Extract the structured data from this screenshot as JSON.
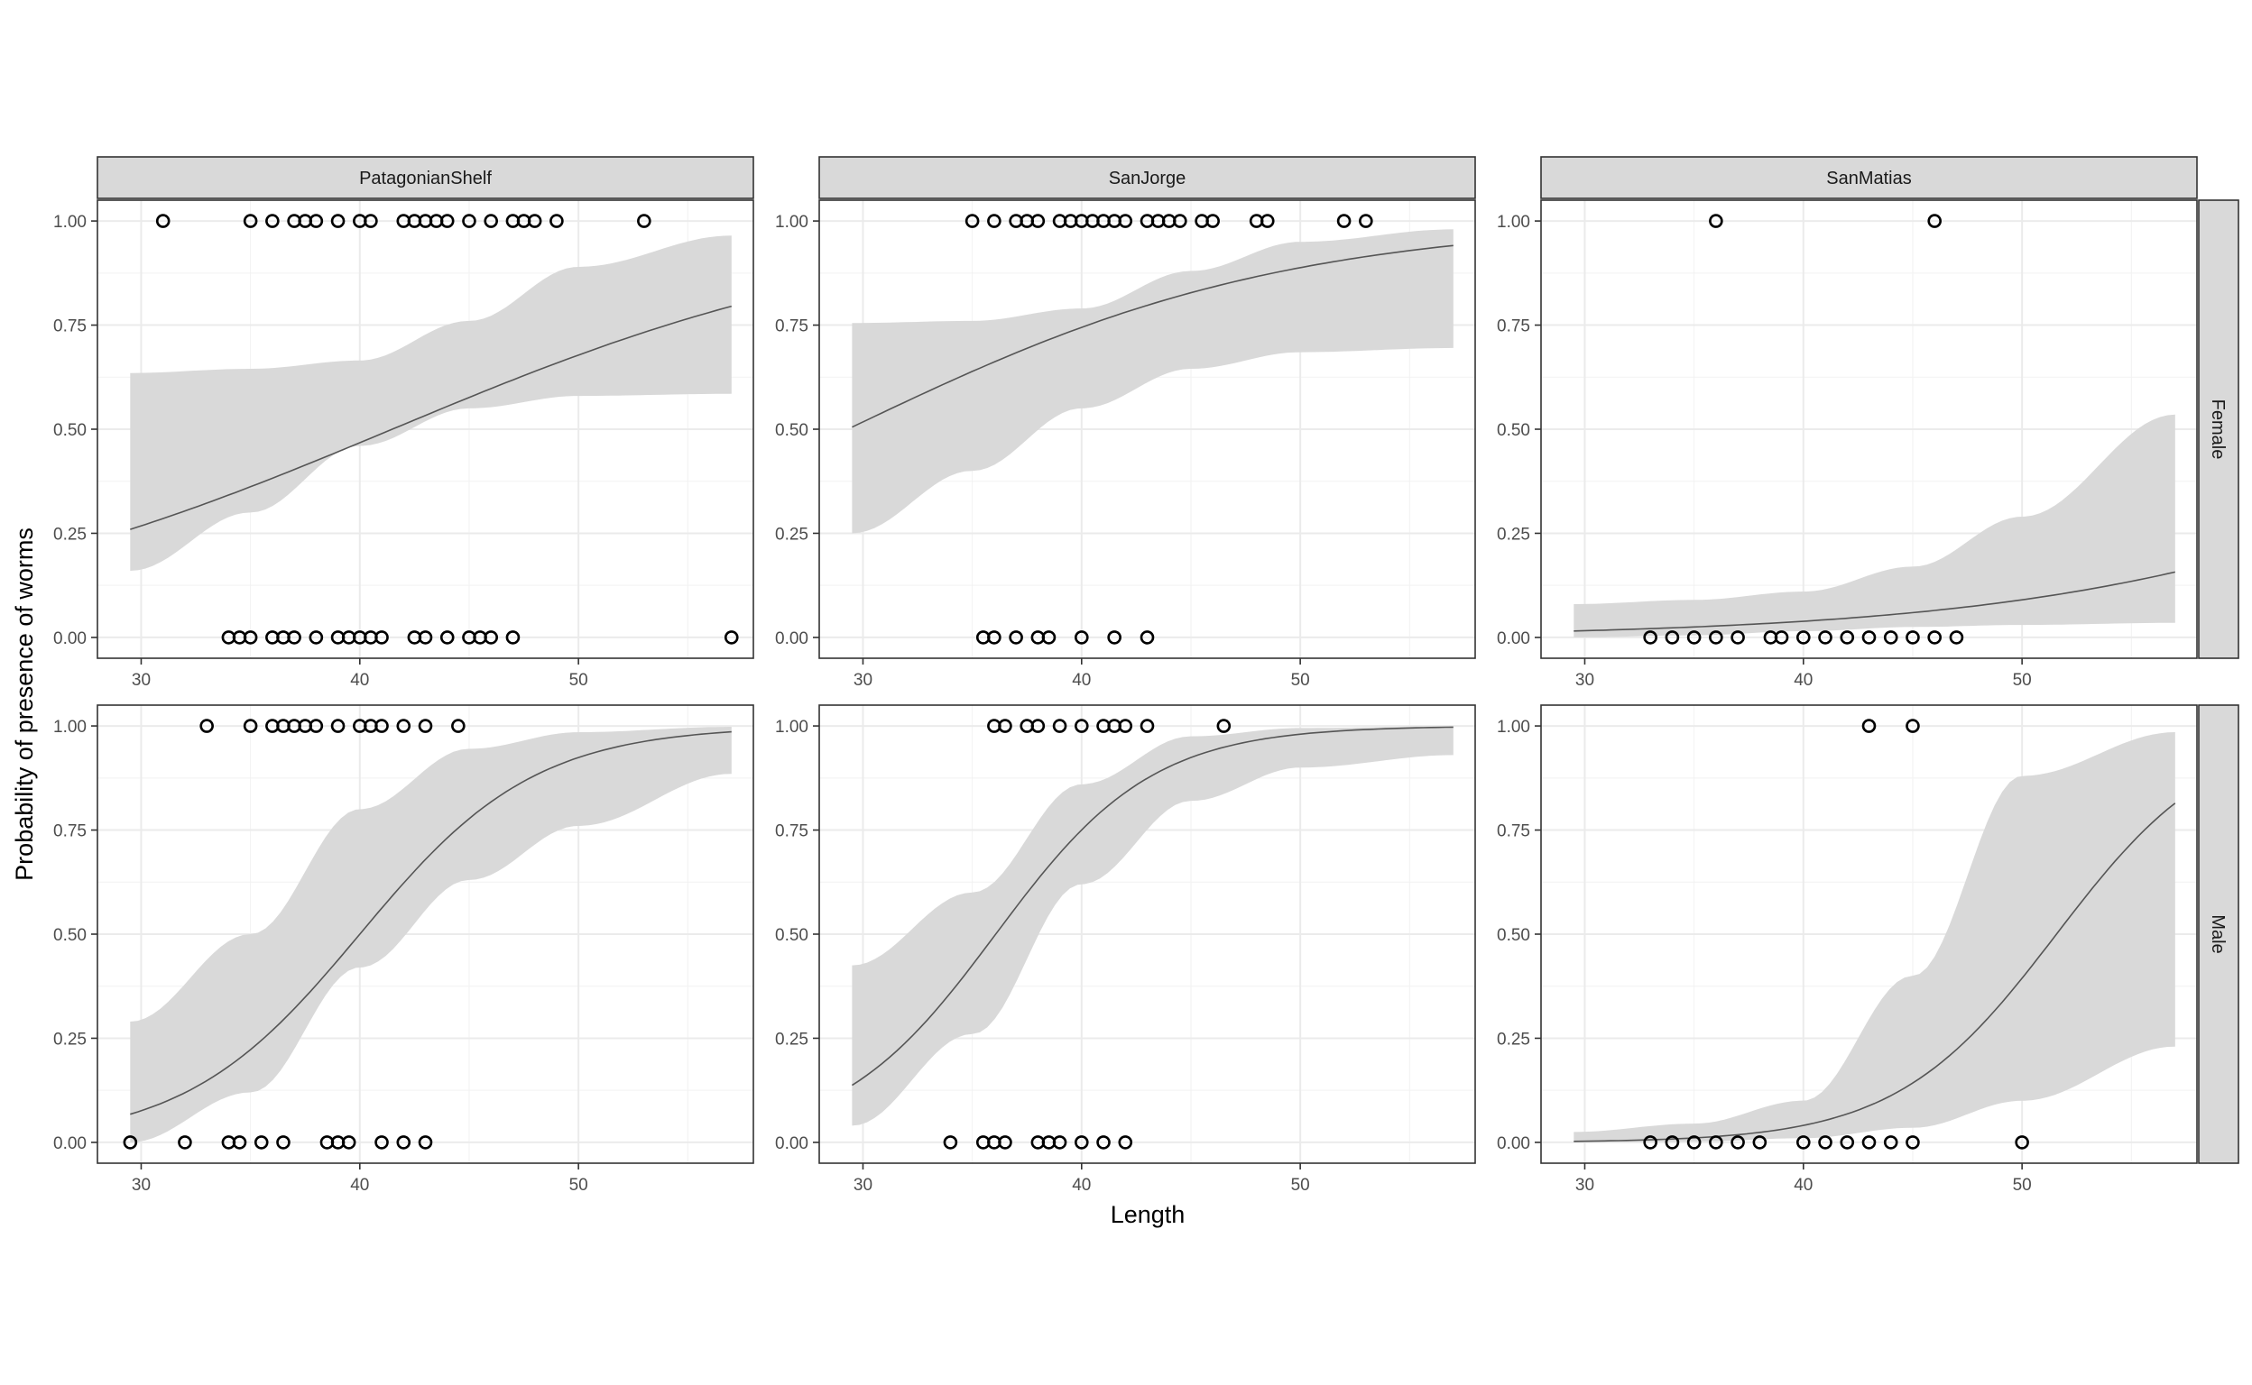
{
  "chart_data": {
    "type": "scatter",
    "title": "",
    "xlabel": "Length",
    "ylabel": "Probability of presence of worms",
    "xlim": [
      28,
      58
    ],
    "ylim": [
      -0.05,
      1.05
    ],
    "x_ticks": [
      30,
      40,
      50
    ],
    "y_ticks": [
      "0.00",
      "0.25",
      "0.50",
      "0.75",
      "1.00"
    ],
    "columns": [
      "PatagonianShelf",
      "SanJorge",
      "SanMatias"
    ],
    "rows": [
      "Female",
      "Male"
    ],
    "grid": true,
    "layers": [
      "confidence ribbon",
      "fitted logistic line",
      "observed points"
    ],
    "x_range_fit": [
      29.5,
      57
    ],
    "panels": [
      {
        "area": "PatagonianShelf",
        "sex": "Female",
        "fit": {
          "intercept": -3.63,
          "slope": 0.0875
        },
        "band": {
          "x": [
            29.5,
            35,
            40,
            45,
            50,
            57
          ],
          "lower": [
            0.16,
            0.3,
            0.46,
            0.55,
            0.58,
            0.585
          ],
          "upper": [
            0.635,
            0.645,
            0.665,
            0.76,
            0.89,
            0.965
          ]
        },
        "points_present": [
          31,
          35,
          36,
          37,
          37.5,
          38,
          39,
          40,
          40.5,
          42,
          42.5,
          43,
          43.5,
          44,
          45,
          46,
          47,
          47.5,
          48,
          49,
          53
        ],
        "points_absent": [
          34,
          34.5,
          35,
          36,
          36.5,
          37,
          38,
          39,
          39.5,
          40,
          40.5,
          41,
          42.5,
          43,
          44,
          45,
          45.5,
          46,
          47,
          57
        ]
      },
      {
        "area": "SanJorge",
        "sex": "Female",
        "fit": {
          "intercept": -2.93,
          "slope": 0.1
        },
        "band": {
          "x": [
            29.5,
            35,
            40,
            45,
            50,
            57
          ],
          "lower": [
            0.25,
            0.4,
            0.55,
            0.645,
            0.685,
            0.695
          ],
          "upper": [
            0.755,
            0.76,
            0.79,
            0.88,
            0.95,
            0.98
          ]
        },
        "points_present": [
          35,
          36,
          37,
          37.5,
          38,
          39,
          39.5,
          40,
          40.5,
          41,
          41.5,
          42,
          43,
          43.5,
          44,
          44.5,
          45.5,
          46,
          48,
          48.5,
          52,
          53
        ],
        "points_absent": [
          35.5,
          36,
          37,
          38,
          38.5,
          40,
          41.5,
          43
        ]
      },
      {
        "area": "SanMatias",
        "sex": "Female",
        "fit": {
          "intercept": -6.81,
          "slope": 0.09
        },
        "band": {
          "x": [
            29.5,
            35,
            40,
            45,
            50,
            57
          ],
          "lower": [
            0.0,
            0.005,
            0.015,
            0.025,
            0.03,
            0.035
          ],
          "upper": [
            0.08,
            0.09,
            0.11,
            0.17,
            0.29,
            0.535
          ]
        },
        "points_present": [
          36,
          46
        ],
        "points_absent": [
          33,
          34,
          35,
          36,
          37,
          38.5,
          39,
          40,
          41,
          42,
          43,
          44,
          45,
          46,
          47
        ]
      },
      {
        "area": "PatagonianShelf",
        "sex": "Male",
        "fit": {
          "intercept": -10.0,
          "slope": 0.25
        },
        "band": {
          "x": [
            29.5,
            35,
            40,
            45,
            50,
            57
          ],
          "lower": [
            0.0,
            0.12,
            0.42,
            0.63,
            0.76,
            0.885
          ],
          "upper": [
            0.29,
            0.5,
            0.8,
            0.945,
            0.985,
            0.998
          ]
        },
        "points_present": [
          33,
          35,
          36,
          36.5,
          37,
          37.5,
          38,
          39,
          40,
          40.5,
          41,
          42,
          43,
          44.5
        ],
        "points_absent": [
          29.5,
          32,
          34,
          34.5,
          35.5,
          36.5,
          38.5,
          39,
          39.5,
          41,
          42,
          43
        ]
      },
      {
        "area": "SanJorge",
        "sex": "Male",
        "fit": {
          "intercept": -10.1,
          "slope": 0.28
        },
        "band": {
          "x": [
            29.5,
            35,
            40,
            45,
            50,
            57
          ],
          "lower": [
            0.04,
            0.26,
            0.62,
            0.82,
            0.9,
            0.93
          ],
          "upper": [
            0.425,
            0.6,
            0.86,
            0.975,
            0.995,
            0.999
          ]
        },
        "points_present": [
          36,
          36.5,
          37.5,
          38,
          39,
          40,
          41,
          41.5,
          42,
          43,
          46.5
        ],
        "points_absent": [
          34,
          35.5,
          36,
          36.5,
          38,
          38.5,
          39,
          40,
          41,
          42
        ]
      },
      {
        "area": "SanMatias",
        "sex": "Male",
        "fit": {
          "intercept": -14.08,
          "slope": 0.273
        },
        "band": {
          "x": [
            29.5,
            35,
            40,
            45,
            50,
            57
          ],
          "lower": [
            0.0,
            0.002,
            0.01,
            0.035,
            0.1,
            0.23
          ],
          "upper": [
            0.025,
            0.045,
            0.1,
            0.4,
            0.88,
            0.985
          ]
        },
        "points_present": [
          43,
          45
        ],
        "points_absent": [
          33,
          34,
          35,
          36,
          37,
          38,
          40,
          41,
          42,
          43,
          44,
          45,
          50
        ]
      }
    ]
  }
}
